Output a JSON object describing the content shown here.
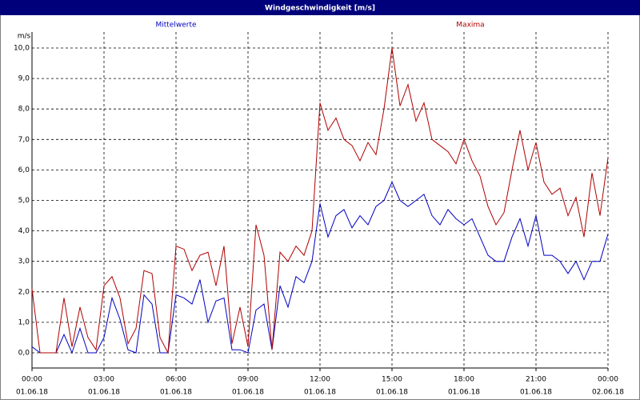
{
  "chart_data": {
    "type": "line",
    "title": "Windgeschwindigkeit [m/s]",
    "y_label": "m/s",
    "x": [
      0,
      20,
      40,
      60,
      80,
      100,
      120,
      140,
      160,
      180,
      200,
      220,
      240,
      260,
      280,
      300,
      320,
      340,
      360,
      380,
      400,
      420,
      440,
      460,
      480,
      500,
      520,
      540,
      560,
      580,
      600,
      620,
      640,
      660,
      680,
      700,
      720,
      740,
      760,
      780,
      800,
      820,
      840,
      860,
      880,
      900,
      920,
      940,
      960,
      980,
      1000,
      1020,
      1040,
      1060,
      1080,
      1100,
      1120,
      1140,
      1160,
      1180,
      1200,
      1220,
      1240,
      1260,
      1280,
      1300,
      1320,
      1340,
      1360,
      1380,
      1400,
      1420,
      1440
    ],
    "series": [
      {
        "name": "Mittelwerte",
        "color": "#0000c0",
        "values": [
          0.2,
          0,
          0,
          0,
          0.6,
          0,
          0.8,
          0,
          0,
          0.5,
          1.8,
          1.1,
          0.1,
          0,
          1.9,
          1.6,
          0,
          0,
          1.9,
          1.8,
          1.6,
          2.4,
          1.0,
          1.7,
          1.8,
          0.1,
          0.1,
          0,
          1.4,
          1.6,
          0.1,
          2.2,
          1.5,
          2.5,
          2.3,
          3.0,
          4.9,
          3.8,
          4.5,
          4.7,
          4.1,
          4.5,
          4.2,
          4.8,
          5.0,
          5.6,
          5.0,
          4.8,
          5.0,
          5.2,
          4.5,
          4.2,
          4.7,
          4.4,
          4.2,
          4.4,
          3.8,
          3.2,
          3.0,
          3.0,
          3.8,
          4.4,
          3.5,
          4.5,
          3.2,
          3.2,
          3.0,
          2.6,
          3.0,
          2.4,
          3.0,
          3.0,
          3.9
        ]
      },
      {
        "name": "Maxima",
        "color": "#b00000",
        "values": [
          2.1,
          0,
          0,
          0,
          1.8,
          0.2,
          1.5,
          0.5,
          0.1,
          2.2,
          2.5,
          1.8,
          0.3,
          0.8,
          2.7,
          2.6,
          0.5,
          0,
          3.5,
          3.4,
          2.7,
          3.2,
          3.3,
          2.2,
          3.5,
          0.3,
          1.5,
          0.2,
          4.2,
          3.2,
          0.1,
          3.3,
          3.0,
          3.5,
          3.2,
          4.0,
          8.2,
          7.3,
          7.7,
          7.0,
          6.8,
          6.3,
          6.9,
          6.5,
          8.0,
          10.0,
          8.1,
          8.8,
          7.6,
          8.2,
          7.0,
          6.8,
          6.6,
          6.2,
          7.0,
          6.3,
          5.8,
          4.8,
          4.2,
          4.6,
          6.0,
          7.3,
          6.0,
          6.9,
          5.6,
          5.2,
          5.4,
          4.5,
          5.1,
          3.8,
          5.9,
          4.5,
          6.4
        ]
      }
    ],
    "xlim": [
      0,
      1440
    ],
    "xticks": [
      {
        "value": 0,
        "label": "00:00"
      },
      {
        "value": 180,
        "label": "03:00"
      },
      {
        "value": 360,
        "label": "06:00"
      },
      {
        "value": 540,
        "label": "09:00"
      },
      {
        "value": 720,
        "label": "12:00"
      },
      {
        "value": 900,
        "label": "15:00"
      },
      {
        "value": 1080,
        "label": "18:00"
      },
      {
        "value": 1260,
        "label": "21:00"
      },
      {
        "value": 1440,
        "label": "00:00"
      }
    ],
    "xtick_dates": [
      "01.06.18",
      "01.06.18",
      "01.06.18",
      "01.06.18",
      "01.06.18",
      "01.06.18",
      "01.06.18",
      "01.06.18",
      "02.06.18"
    ],
    "ylim": [
      0,
      10
    ],
    "yticks": [
      {
        "value": 0,
        "label": "0,0"
      },
      {
        "value": 1,
        "label": "1,0"
      },
      {
        "value": 2,
        "label": "2,0"
      },
      {
        "value": 3,
        "label": "3,0"
      },
      {
        "value": 4,
        "label": "4,0"
      },
      {
        "value": 5,
        "label": "5,0"
      },
      {
        "value": 6,
        "label": "6,0"
      },
      {
        "value": 7,
        "label": "7,0"
      },
      {
        "value": 8,
        "label": "8,0"
      },
      {
        "value": 9,
        "label": "9,0"
      },
      {
        "value": 10,
        "label": "10,0"
      }
    ],
    "grid": true
  }
}
